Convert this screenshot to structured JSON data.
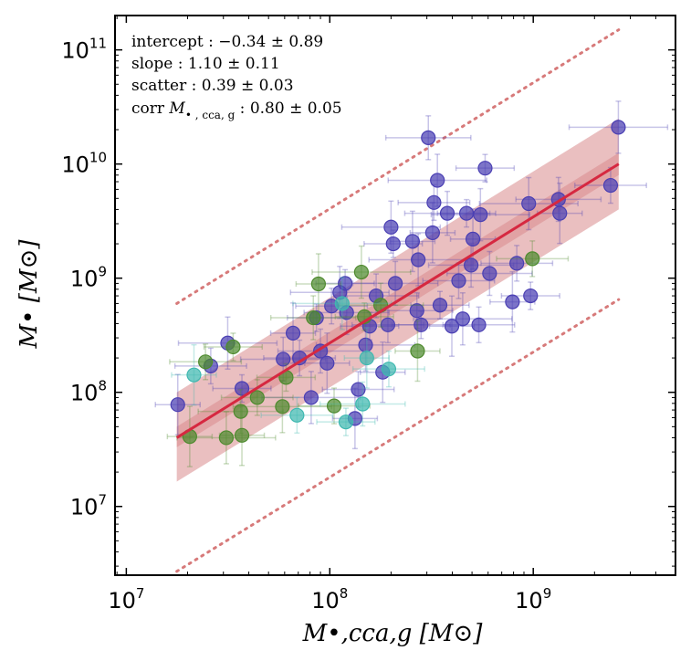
{
  "chart_data": {
    "type": "scatter",
    "xscale": "log",
    "yscale": "log",
    "xlim": [
      8800000.0,
      5000000000.0
    ],
    "ylim": [
      2500000.0,
      200000000000.0
    ],
    "xlabel": "M•,cca,g [M⊙]",
    "ylabel": "M• [M⊙]",
    "x_ticks": [
      {
        "base": "10",
        "exp": "7",
        "value": 10000000
      },
      {
        "base": "10",
        "exp": "8",
        "value": 100000000
      },
      {
        "base": "10",
        "exp": "9",
        "value": 1000000000
      }
    ],
    "y_ticks": [
      {
        "base": "10",
        "exp": "7",
        "value": 10000000
      },
      {
        "base": "10",
        "exp": "8",
        "value": 100000000
      },
      {
        "base": "10",
        "exp": "9",
        "value": 1000000000
      },
      {
        "base": "10",
        "exp": "10",
        "value": 10000000000
      },
      {
        "base": "10",
        "exp": "11",
        "value": 100000000000
      }
    ],
    "annotations": {
      "intercept": "intercept :  −0.34 ± 0.89",
      "slope": "slope : 1.10 ± 0.11",
      "scatter": "scatter :  0.39 ± 0.03",
      "corr_prefix": "corr ",
      "corr_var": "M",
      "corr_sub": "• , cca, g",
      "corr_value": " :  0.80 ± 0.05"
    },
    "fit": {
      "intercept": -0.34,
      "slope": 1.1,
      "x_range": [
        17700000.0,
        2630000000.0
      ],
      "line_endpoints_y": [
        40000000.0,
        10000000000.0
      ],
      "band_inner_y": [
        [
          33000000.0,
          50000000.0
        ],
        [
          8000000000.0,
          12500000000.0
        ]
      ],
      "band_outer_y": [
        [
          16500000.0,
          100000000.0
        ],
        [
          4000000000.0,
          25000000000.0
        ]
      ],
      "dotted_upper_y": [
        600000000.0,
        150000000000.0
      ],
      "dotted_lower_y": [
        2700000.0,
        650000000.0
      ],
      "colors": {
        "line": "#d62840",
        "band": "#d98a8c",
        "dotted": "#d77a7a"
      }
    },
    "series": [
      {
        "name": "blue",
        "color": "#4a3fb3",
        "points": [
          [
            17900000.0,
            78000000.0
          ],
          [
            26000000.0,
            170000000.0
          ],
          [
            31500000.0,
            270000000.0
          ],
          [
            37000000.0,
            108000000.0
          ],
          [
            59000000.0,
            195000000.0
          ],
          [
            66000000.0,
            330000000.0
          ],
          [
            71000000.0,
            200000000.0
          ],
          [
            81000000.0,
            90000000.0
          ],
          [
            86000000.0,
            450000000.0
          ],
          [
            90000000.0,
            230000000.0
          ],
          [
            97000000.0,
            180000000.0
          ],
          [
            102000000.0,
            570000000.0
          ],
          [
            112000000.0,
            750000000.0
          ],
          [
            119000000.0,
            900000000.0
          ],
          [
            121000000.0,
            500000000.0
          ],
          [
            133000000.0,
            59000000.0
          ],
          [
            138000000.0,
            106000000.0
          ],
          [
            150000000.0,
            260000000.0
          ],
          [
            157000000.0,
            380000000.0
          ],
          [
            169000000.0,
            700000000.0
          ],
          [
            182000000.0,
            150000000.0
          ],
          [
            193000000.0,
            390000000.0
          ],
          [
            200000000.0,
            2800000000.0
          ],
          [
            205000000.0,
            2000000000.0
          ],
          [
            210000000.0,
            900000000.0
          ],
          [
            255000000.0,
            2100000000.0
          ],
          [
            268000000.0,
            520000000.0
          ],
          [
            272000000.0,
            1450000000.0
          ],
          [
            281000000.0,
            390000000.0
          ],
          [
            305000000.0,
            17000000000.0
          ],
          [
            320000000.0,
            2500000000.0
          ],
          [
            325000000.0,
            4600000000.0
          ],
          [
            338000000.0,
            7200000000.0
          ],
          [
            348000000.0,
            580000000.0
          ],
          [
            378000000.0,
            3700000000.0
          ],
          [
            398000000.0,
            380000000.0
          ],
          [
            430000000.0,
            950000000.0
          ],
          [
            450000000.0,
            440000000.0
          ],
          [
            470000000.0,
            3700000000.0
          ],
          [
            495000000.0,
            1300000000.0
          ],
          [
            505000000.0,
            2200000000.0
          ],
          [
            540000000.0,
            390000000.0
          ],
          [
            550000000.0,
            3600000000.0
          ],
          [
            580000000.0,
            9200000000.0
          ],
          [
            610000000.0,
            1100000000.0
          ],
          [
            790000000.0,
            620000000.0
          ],
          [
            830000000.0,
            1350000000.0
          ],
          [
            950000000.0,
            4500000000.0
          ],
          [
            970000000.0,
            700000000.0
          ],
          [
            1330000000.0,
            4900000000.0
          ],
          [
            1350000000.0,
            3700000000.0
          ],
          [
            2400000000.0,
            6500000000.0
          ],
          [
            2620000000.0,
            21000000000.0
          ]
        ]
      },
      {
        "name": "green",
        "color": "#4e8a2e",
        "points": [
          [
            20500000.0,
            41000000.0
          ],
          [
            24500000.0,
            185000000.0
          ],
          [
            31000000.0,
            40000000.0
          ],
          [
            33500000.0,
            250000000.0
          ],
          [
            36500000.0,
            68000000.0
          ],
          [
            37000000.0,
            42000000.0
          ],
          [
            44000000.0,
            90000000.0
          ],
          [
            58500000.0,
            75000000.0
          ],
          [
            61000000.0,
            135000000.0
          ],
          [
            83000000.0,
            450000000.0
          ],
          [
            88000000.0,
            890000000.0
          ],
          [
            105000000.0,
            76000000.0
          ],
          [
            143000000.0,
            1130000000.0
          ],
          [
            148000000.0,
            460000000.0
          ],
          [
            178000000.0,
            580000000.0
          ],
          [
            270000000.0,
            230000000.0
          ],
          [
            990000000.0,
            1480000000.0
          ]
        ]
      },
      {
        "name": "teal",
        "color": "#3fb8b0",
        "points": [
          [
            21500000.0,
            142000000.0
          ],
          [
            69000000.0,
            63000000.0
          ],
          [
            115000000.0,
            600000000.0
          ],
          [
            120000000.0,
            55000000.0
          ],
          [
            145000000.0,
            79000000.0
          ],
          [
            152000000.0,
            200000000.0
          ],
          [
            195000000.0,
            160000000.0
          ]
        ]
      }
    ]
  }
}
